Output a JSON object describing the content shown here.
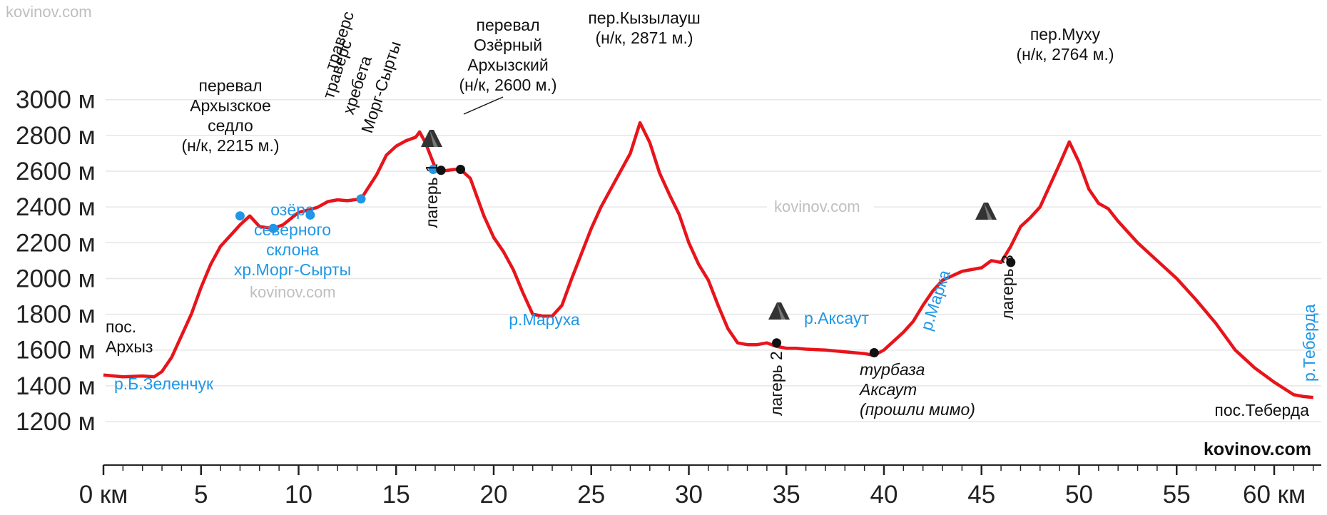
{
  "watermark": "kovinov.com",
  "brand": "kovinov.com",
  "colors": {
    "profile": "#e8141b",
    "water": "#1f97e6",
    "point_blue": "#1f97e6",
    "point_black": "#111111"
  },
  "chart_data": {
    "type": "line",
    "title": "",
    "xlabel": "",
    "ylabel": "",
    "xlim": [
      0,
      62
    ],
    "ylim": [
      1200,
      3000
    ],
    "y_ticks": [
      {
        "value": 1200,
        "label": "1200 м"
      },
      {
        "value": 1400,
        "label": "1400 м"
      },
      {
        "value": 1600,
        "label": "1600 м"
      },
      {
        "value": 1800,
        "label": "1800 м"
      },
      {
        "value": 2000,
        "label": "2000 м"
      },
      {
        "value": 2200,
        "label": "2200 м"
      },
      {
        "value": 2400,
        "label": "2400 м"
      },
      {
        "value": 2600,
        "label": "2600 м"
      },
      {
        "value": 2800,
        "label": "2800 м"
      },
      {
        "value": 3000,
        "label": "3000 м"
      }
    ],
    "x_ticks": [
      {
        "value": 0,
        "label": "0 км"
      },
      {
        "value": 5,
        "label": "5"
      },
      {
        "value": 10,
        "label": "10"
      },
      {
        "value": 15,
        "label": "15"
      },
      {
        "value": 20,
        "label": "20"
      },
      {
        "value": 25,
        "label": "25"
      },
      {
        "value": 30,
        "label": "30"
      },
      {
        "value": 35,
        "label": "35"
      },
      {
        "value": 40,
        "label": "40"
      },
      {
        "value": 45,
        "label": "45"
      },
      {
        "value": 50,
        "label": "50"
      },
      {
        "value": 55,
        "label": "55"
      },
      {
        "value": 60,
        "label": "60 км"
      }
    ],
    "grid": true,
    "series": [
      {
        "x": [
          0,
          1,
          2,
          2.6,
          3.0,
          3.5,
          4.0,
          4.5,
          5.0,
          5.5,
          6.0,
          6.5,
          7.0,
          7.5,
          8.0,
          8.7,
          9.2,
          10.0,
          10.6,
          11.0,
          11.5,
          12.0,
          12.5,
          13.2,
          14.0,
          14.5,
          15.0,
          15.5,
          16.0,
          16.2,
          16.5,
          17.0,
          17.3,
          18.0,
          18.3,
          18.8,
          19.5,
          20.0,
          20.5,
          21.0,
          21.5,
          22.0,
          22.5,
          23.0,
          23.5,
          24.0,
          24.5,
          25.0,
          25.5,
          26.0,
          26.5,
          27.0,
          27.5,
          28.0,
          28.5,
          29.0,
          29.5,
          30.0,
          30.5,
          31.0,
          31.5,
          32.0,
          32.5,
          33.0,
          33.5,
          34.0,
          34.5,
          35.0,
          35.5,
          36.0,
          37.0,
          38.0,
          39.0,
          39.5,
          40.0,
          40.5,
          41.0,
          41.5,
          42.0,
          42.5,
          43.0,
          44.0,
          45.0,
          45.5,
          46.0,
          46.5,
          47.0,
          47.5,
          48.0,
          48.5,
          49.0,
          49.5,
          50.0,
          50.5,
          51.0,
          51.5,
          52.0,
          53.0,
          54.0,
          55.0,
          56.0,
          57.0,
          58.0,
          59.0,
          60.0,
          61.0,
          61.5,
          62.0
        ],
        "y": [
          1460,
          1450,
          1455,
          1450,
          1480,
          1560,
          1680,
          1800,
          1950,
          2080,
          2180,
          2240,
          2300,
          2350,
          2290,
          2280,
          2300,
          2370,
          2385,
          2400,
          2430,
          2440,
          2435,
          2445,
          2580,
          2690,
          2740,
          2770,
          2790,
          2820,
          2760,
          2620,
          2600,
          2610,
          2610,
          2560,
          2350,
          2230,
          2150,
          2050,
          1920,
          1800,
          1790,
          1790,
          1850,
          2000,
          2140,
          2280,
          2400,
          2500,
          2600,
          2700,
          2871,
          2760,
          2590,
          2470,
          2360,
          2200,
          2080,
          1990,
          1850,
          1720,
          1640,
          1630,
          1630,
          1640,
          1620,
          1610,
          1610,
          1605,
          1600,
          1590,
          1580,
          1570,
          1600,
          1650,
          1700,
          1760,
          1850,
          1930,
          1990,
          2040,
          2060,
          2100,
          2090,
          2180,
          2290,
          2340,
          2400,
          2520,
          2640,
          2764,
          2650,
          2500,
          2420,
          2390,
          2320,
          2200,
          2100,
          2000,
          1880,
          1750,
          1600,
          1500,
          1420,
          1350,
          1340,
          1335
        ]
      }
    ],
    "points": [
      {
        "x": 7.0,
        "y": 2350,
        "color": "blue"
      },
      {
        "x": 8.7,
        "y": 2280,
        "color": "blue"
      },
      {
        "x": 10.6,
        "y": 2355,
        "color": "blue"
      },
      {
        "x": 13.2,
        "y": 2445,
        "color": "blue"
      },
      {
        "x": 16.9,
        "y": 2610,
        "color": "blue"
      },
      {
        "x": 17.3,
        "y": 2605,
        "color": "black"
      },
      {
        "x": 18.3,
        "y": 2610,
        "color": "black"
      },
      {
        "x": 34.5,
        "y": 1640,
        "color": "black"
      },
      {
        "x": 39.5,
        "y": 1585,
        "color": "black"
      },
      {
        "x": 46.5,
        "y": 2090,
        "color": "black"
      }
    ],
    "annotations": {
      "pass_archyz_saddle": [
        "перевал",
        "Архызское",
        "седло",
        "(н/к, 2215 м.)"
      ],
      "traverse": [
        "траверс",
        "хребета",
        "Морг-Сырты"
      ],
      "pass_ozerny": [
        "перевал",
        "Озёрный",
        "Архызский",
        "(н/к, 2600 м.)"
      ],
      "pass_kyzylaush": [
        "пер.Кызылауш",
        "(н/к, 2871 м.)"
      ],
      "pass_mukhu": [
        "пер.Муху",
        "(н/к, 2764 м.)"
      ],
      "village_archyz": [
        "пос.",
        "Архыз"
      ],
      "river_b_zelenchuk": "р.Б.Зеленчук",
      "lakes": [
        "озёра",
        "северного",
        "склона",
        "хр.Морг-Сырты"
      ],
      "camp1": "лагерь 1",
      "river_marukha": "р.Маруха",
      "camp2": "лагерь 2",
      "river_aksaut": "р.Аксаут",
      "tourbase": [
        "турбаза",
        "Аксаут",
        "(прошли мимо)"
      ],
      "river_marka": "р.Марка",
      "camp3": "лагерь 3",
      "river_teberda": "р.Теберда",
      "village_teberda": "пос.Теберда"
    }
  }
}
